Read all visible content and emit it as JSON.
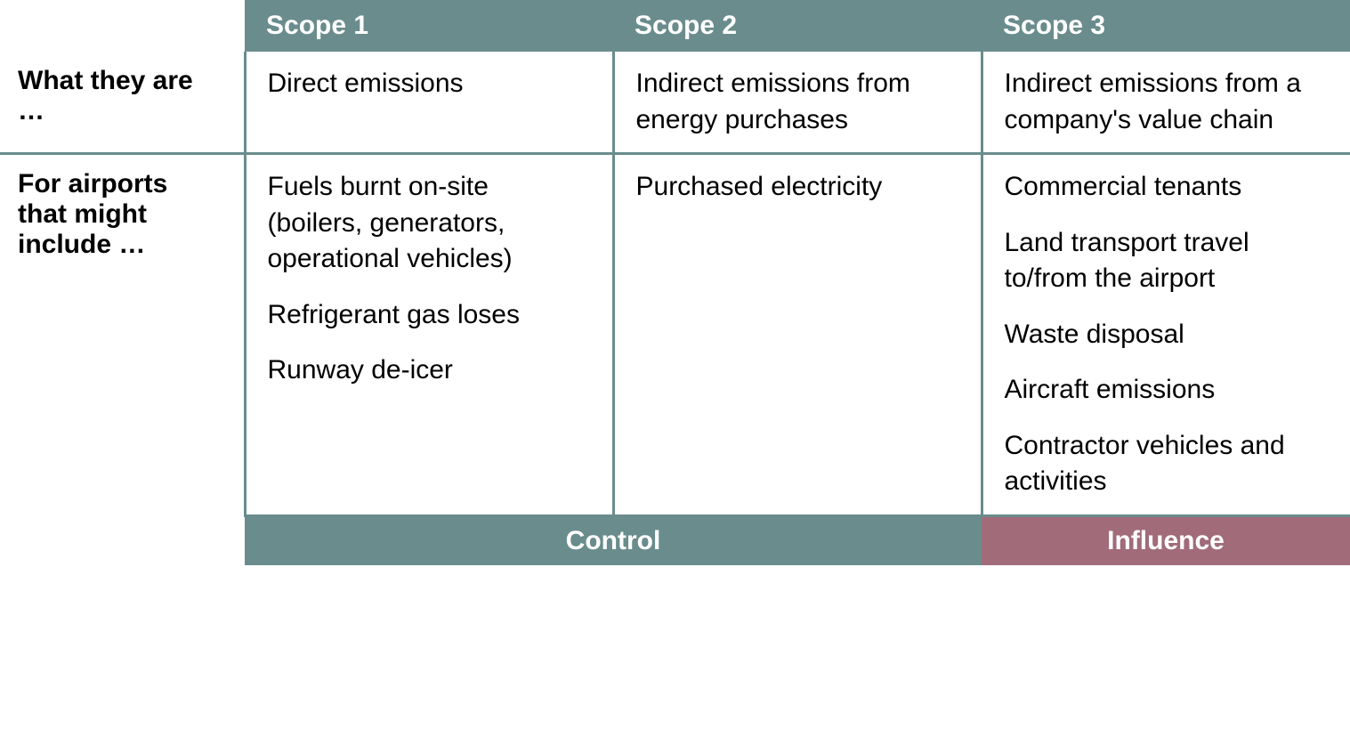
{
  "table": {
    "type": "table",
    "colors": {
      "header_bg": "#6a8c8c",
      "control_bg": "#6a8c8c",
      "influence_bg": "#a16b7a",
      "border": "#6a8c8c",
      "text": "#000000",
      "header_text": "#ffffff",
      "bg": "#ffffff"
    },
    "typography": {
      "body_fontsize": 30,
      "header_fontsize": 30,
      "header_weight": "bold",
      "rowlabel_weight": "bold"
    },
    "columns": {
      "scope1": "Scope 1",
      "scope2": "Scope 2",
      "scope3": "Scope 3"
    },
    "rows": {
      "what": {
        "label": "What they are …",
        "scope1": "Direct emissions",
        "scope2": "Indirect emissions from energy purchases",
        "scope3": "Indirect emissions from a company's value chain"
      },
      "airports": {
        "label": "For airports that might include …",
        "scope1": {
          "item1": "Fuels burnt on-site (boilers, generators, operational vehicles)",
          "item2": "Refrigerant gas loses",
          "item3": "Runway de-icer"
        },
        "scope2": {
          "item1": "Purchased electricity"
        },
        "scope3": {
          "item1": "Commercial tenants",
          "item2": "Land transport travel to/from the airport",
          "item3": "Waste disposal",
          "item4": "Aircraft emissions",
          "item5": "Contractor vehicles and activities"
        }
      }
    },
    "footer": {
      "control": "Control",
      "influence": "Influence"
    }
  }
}
